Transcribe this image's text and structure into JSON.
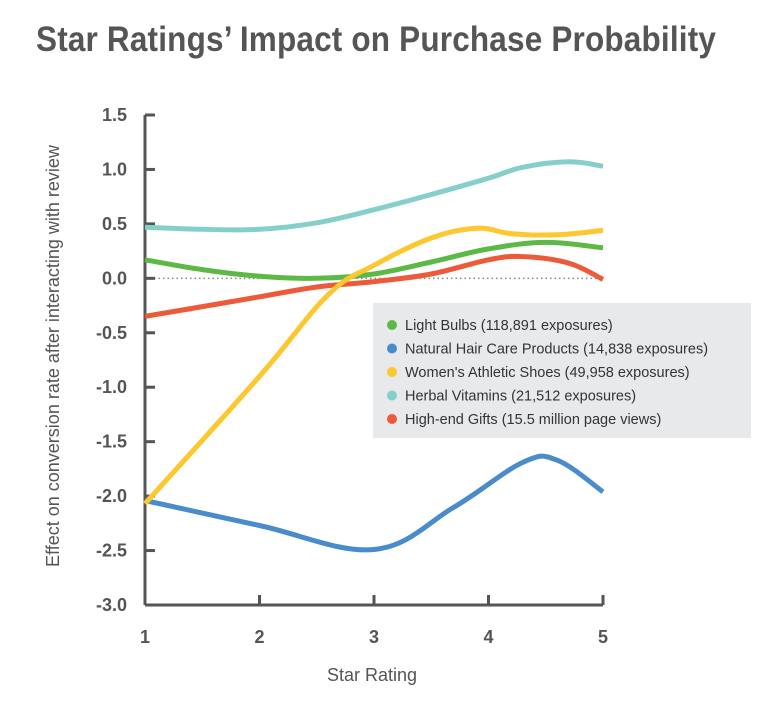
{
  "colors": {
    "title": "#555555",
    "axis": "#555555",
    "text": "#555555",
    "zero_line": "#888888",
    "legend_bg": "#e8e9eb"
  },
  "chart_data": {
    "type": "line",
    "title": "Star Ratings’ Impact on Purchase Probability",
    "xlabel": "Star Rating",
    "ylabel": "Effect on conversion rate after interacting with review",
    "xlim": [
      1,
      5
    ],
    "ylim": [
      -3.0,
      1.5
    ],
    "x_ticks": [
      1,
      2,
      3,
      4,
      5
    ],
    "x_tick_labels": [
      "1",
      "2",
      "3",
      "4",
      "5"
    ],
    "y_ticks": [
      1.5,
      1.0,
      0.5,
      0.0,
      -0.5,
      -1.0,
      -1.5,
      -2.0,
      -2.5,
      -3.0
    ],
    "y_tick_labels": [
      "1.5",
      "1.0",
      "0.5",
      "0.0",
      "-0.5",
      "-1.0",
      "-1.5",
      "-2.0",
      "-2.5",
      "-3.0"
    ],
    "zero_line": "dotted",
    "grid": false,
    "legend_position": "right-middle",
    "series": [
      {
        "name": "Light Bulbs (118,891 exposures)",
        "color": "#5cb946",
        "x": [
          1.0,
          1.5,
          2.0,
          2.5,
          3.0,
          3.5,
          4.0,
          4.5,
          5.0
        ],
        "y": [
          0.17,
          0.08,
          0.02,
          0.0,
          0.04,
          0.15,
          0.27,
          0.33,
          0.28
        ]
      },
      {
        "name": "Natural Hair Care Products (14,838 exposures)",
        "color": "#4a8ccb",
        "x": [
          1.0,
          2.0,
          3.0,
          3.7,
          4.3,
          4.6,
          5.0
        ],
        "y": [
          -2.04,
          -2.27,
          -2.49,
          -2.1,
          -1.69,
          -1.67,
          -1.96
        ]
      },
      {
        "name": "Women's Athletic Shoes (49,958 exposures)",
        "color": "#fcc72f",
        "x": [
          1.0,
          2.0,
          2.6,
          3.0,
          3.5,
          3.9,
          4.2,
          4.6,
          5.0
        ],
        "y": [
          -2.07,
          -0.9,
          -0.15,
          0.12,
          0.37,
          0.46,
          0.41,
          0.4,
          0.44
        ]
      },
      {
        "name": "Herbal Vitamins (21,512 exposures)",
        "color": "#85cfcb",
        "x": [
          1.0,
          1.5,
          2.0,
          2.5,
          3.0,
          3.5,
          4.0,
          4.3,
          4.7,
          5.0
        ],
        "y": [
          0.47,
          0.45,
          0.45,
          0.51,
          0.63,
          0.77,
          0.92,
          1.02,
          1.07,
          1.03
        ]
      },
      {
        "name": "High-end Gifts (15.5 million page views)",
        "color": "#ed5a3a",
        "x": [
          1.0,
          1.5,
          2.0,
          2.5,
          3.0,
          3.5,
          4.0,
          4.3,
          4.7,
          5.0
        ],
        "y": [
          -0.35,
          -0.26,
          -0.17,
          -0.08,
          -0.03,
          0.04,
          0.17,
          0.2,
          0.14,
          -0.01
        ]
      }
    ]
  }
}
